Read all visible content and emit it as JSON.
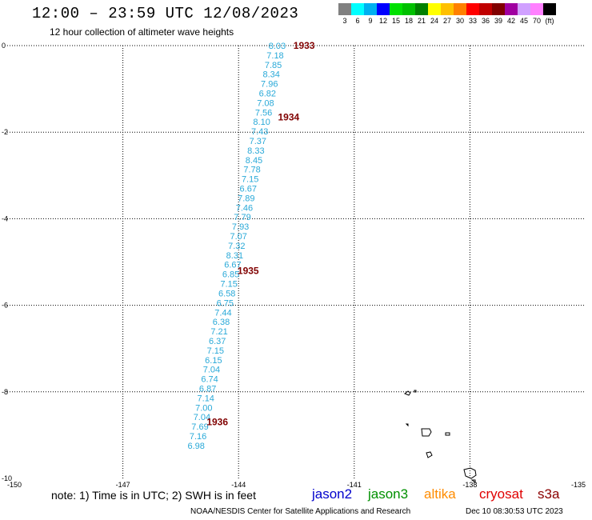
{
  "title": "12:00 – 23:59 UTC 12/08/2023",
  "subtitle": "12 hour collection of altimeter wave heights",
  "legend": {
    "colors": [
      "#808080",
      "#00ffff",
      "#00b0f0",
      "#0000ff",
      "#00e000",
      "#00c000",
      "#008000",
      "#ffff00",
      "#ffc000",
      "#ff8000",
      "#ff0000",
      "#c00000",
      "#800000",
      "#a000a0",
      "#d0a0ff",
      "#ff80ff",
      "#000000"
    ],
    "labels": [
      "3",
      "6",
      "9",
      "12",
      "15",
      "18",
      "21",
      "24",
      "27",
      "30",
      "33",
      "36",
      "39",
      "42",
      "45",
      "70",
      "(ft)"
    ]
  },
  "map": {
    "x_ticks": [
      "-150",
      "-147",
      "-144",
      "-141",
      "-138",
      "-135"
    ],
    "y_ticks": [
      "0",
      "-2",
      "-4",
      "-6",
      "-8",
      "-10"
    ],
    "wave_color": "#29a9d8",
    "pass_color": "#800000",
    "wave_heights": [
      {
        "lon": -143.0,
        "lat": 0.0,
        "ft": "8.03"
      },
      {
        "lon": -143.05,
        "lat": -0.22,
        "ft": "7.18"
      },
      {
        "lon": -143.1,
        "lat": -0.44,
        "ft": "7.85"
      },
      {
        "lon": -143.15,
        "lat": -0.66,
        "ft": "8.34"
      },
      {
        "lon": -143.2,
        "lat": -0.88,
        "ft": "7.96"
      },
      {
        "lon": -143.25,
        "lat": -1.1,
        "ft": "6.82"
      },
      {
        "lon": -143.3,
        "lat": -1.32,
        "ft": "7.08"
      },
      {
        "lon": -143.35,
        "lat": -1.54,
        "ft": "7.56"
      },
      {
        "lon": -143.4,
        "lat": -1.76,
        "ft": "8.10"
      },
      {
        "lon": -143.45,
        "lat": -1.98,
        "ft": "7.43"
      },
      {
        "lon": -143.5,
        "lat": -2.2,
        "ft": "7.37"
      },
      {
        "lon": -143.55,
        "lat": -2.42,
        "ft": "8.33"
      },
      {
        "lon": -143.6,
        "lat": -2.64,
        "ft": "8.45"
      },
      {
        "lon": -143.65,
        "lat": -2.86,
        "ft": "7.78"
      },
      {
        "lon": -143.7,
        "lat": -3.08,
        "ft": "7.15"
      },
      {
        "lon": -143.75,
        "lat": -3.3,
        "ft": "6.67"
      },
      {
        "lon": -143.8,
        "lat": -3.52,
        "ft": "7.89"
      },
      {
        "lon": -143.85,
        "lat": -3.74,
        "ft": "7.46"
      },
      {
        "lon": -143.9,
        "lat": -3.96,
        "ft": "7.79"
      },
      {
        "lon": -143.95,
        "lat": -4.18,
        "ft": "7.93"
      },
      {
        "lon": -144.0,
        "lat": -4.4,
        "ft": "7.07"
      },
      {
        "lon": -144.05,
        "lat": -4.62,
        "ft": "7.32"
      },
      {
        "lon": -144.1,
        "lat": -4.84,
        "ft": "8.31"
      },
      {
        "lon": -144.15,
        "lat": -5.06,
        "ft": "6.67"
      },
      {
        "lon": -144.2,
        "lat": -5.28,
        "ft": "6.85"
      },
      {
        "lon": -144.25,
        "lat": -5.5,
        "ft": "7.15"
      },
      {
        "lon": -144.3,
        "lat": -5.72,
        "ft": "6.58"
      },
      {
        "lon": -144.35,
        "lat": -5.94,
        "ft": "6.75"
      },
      {
        "lon": -144.4,
        "lat": -6.16,
        "ft": "7.44"
      },
      {
        "lon": -144.45,
        "lat": -6.38,
        "ft": "6.38"
      },
      {
        "lon": -144.5,
        "lat": -6.6,
        "ft": "7.21"
      },
      {
        "lon": -144.55,
        "lat": -6.82,
        "ft": "6.37"
      },
      {
        "lon": -144.6,
        "lat": -7.04,
        "ft": "7.15"
      },
      {
        "lon": -144.65,
        "lat": -7.26,
        "ft": "6.15"
      },
      {
        "lon": -144.7,
        "lat": -7.48,
        "ft": "7.04"
      },
      {
        "lon": -144.75,
        "lat": -7.7,
        "ft": "6.74"
      },
      {
        "lon": -144.8,
        "lat": -7.92,
        "ft": "6.87"
      },
      {
        "lon": -144.85,
        "lat": -8.14,
        "ft": "7.14"
      },
      {
        "lon": -144.9,
        "lat": -8.36,
        "ft": "7.00"
      },
      {
        "lon": -144.95,
        "lat": -8.58,
        "ft": "7.04"
      },
      {
        "lon": -145.0,
        "lat": -8.8,
        "ft": "7.69"
      },
      {
        "lon": -145.05,
        "lat": -9.02,
        "ft": "7.16"
      },
      {
        "lon": -145.1,
        "lat": -9.24,
        "ft": "6.98"
      }
    ],
    "pass_labels": [
      {
        "lon": -142.3,
        "lat": 0.0,
        "text": "1933"
      },
      {
        "lon": -142.7,
        "lat": -1.65,
        "text": "1934"
      },
      {
        "lon": -143.75,
        "lat": -5.2,
        "text": "1935"
      },
      {
        "lon": -144.55,
        "lat": -8.7,
        "text": "1936"
      }
    ]
  },
  "footer": {
    "note": "note: 1) Time is in UTC; 2) SWH is in feet",
    "satellites": [
      {
        "name": "jason2",
        "color": "#0000cc"
      },
      {
        "name": "jason3",
        "color": "#009000"
      },
      {
        "name": "altika",
        "color": "#ff8c00"
      },
      {
        "name": "cryosat",
        "color": "#e00000"
      },
      {
        "name": "s3a",
        "color": "#8b0000"
      }
    ],
    "credit": "NOAA/NESDIS Center for Satellite Applications and Research",
    "timestamp": "Dec 10 08:30:53 UTC 2023"
  }
}
